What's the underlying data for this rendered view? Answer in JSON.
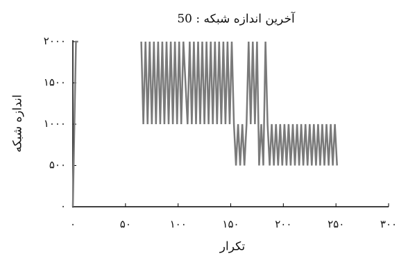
{
  "chart_data": {
    "type": "line",
    "title": "50 : آخرین اندازه شبکه",
    "x_label": "تکرار",
    "y_label": "اندازه شبکه",
    "xlim": [
      0,
      300
    ],
    "ylim": [
      0,
      2000
    ],
    "xticks": [
      {
        "value": 0,
        "label": "۰"
      },
      {
        "value": 50,
        "label": "۵۰"
      },
      {
        "value": 100,
        "label": "۱۰۰"
      },
      {
        "value": 150,
        "label": "۱۵۰"
      },
      {
        "value": 200,
        "label": "۲۰۰"
      },
      {
        "value": 250,
        "label": "۲۵۰"
      },
      {
        "value": 300,
        "label": "۳۰۰"
      }
    ],
    "yticks": [
      {
        "value": 0,
        "label": "۰"
      },
      {
        "value": 500,
        "label": "۵۰۰"
      },
      {
        "value": 1000,
        "label": "۱۰۰۰"
      },
      {
        "value": 1500,
        "label": "۱۵۰۰"
      },
      {
        "value": 2000,
        "label": "۲۰۰۰"
      }
    ],
    "series": [
      {
        "color": "#7a7a7a",
        "x": [
          0,
          3,
          5,
          6,
          65,
          67,
          69,
          71,
          73,
          75,
          77,
          79,
          81,
          83,
          85,
          87,
          89,
          91,
          93,
          95,
          97,
          99,
          101,
          103,
          105,
          109,
          111,
          113,
          115,
          117,
          119,
          121,
          123,
          125,
          127,
          129,
          131,
          133,
          135,
          137,
          139,
          141,
          143,
          145,
          147,
          149,
          151,
          153,
          155,
          157,
          159,
          161,
          163,
          165,
          167,
          169,
          171,
          173,
          175,
          177,
          179,
          181,
          183,
          185,
          187,
          189,
          191,
          193,
          195,
          197,
          199,
          201,
          203,
          205,
          207,
          209,
          211,
          213,
          215,
          217,
          219,
          221,
          223,
          225,
          227,
          229,
          231,
          233,
          235,
          237,
          239,
          241,
          243,
          245,
          247,
          249,
          251
        ],
        "values": [
          0,
          2000,
          2000,
          null,
          2000,
          1000,
          2000,
          1000,
          2000,
          1000,
          2000,
          1000,
          2000,
          1000,
          2000,
          1000,
          2000,
          1000,
          2000,
          1000,
          2000,
          1000,
          2000,
          1000,
          2000,
          1000,
          2000,
          1000,
          2000,
          1000,
          2000,
          1000,
          2000,
          1000,
          2000,
          1000,
          2000,
          1000,
          2000,
          1000,
          2000,
          1000,
          2000,
          1000,
          2000,
          1000,
          2000,
          1000,
          500,
          1000,
          500,
          1000,
          500,
          1000,
          2000,
          1000,
          2000,
          1000,
          2000,
          500,
          1000,
          500,
          2000,
          1000,
          500,
          1000,
          500,
          1000,
          500,
          1000,
          500,
          1000,
          500,
          1000,
          500,
          1000,
          500,
          1000,
          500,
          1000,
          500,
          1000,
          500,
          1000,
          500,
          1000,
          500,
          1000,
          500,
          1000,
          500,
          1000,
          500,
          1000,
          500,
          1000,
          500
        ]
      }
    ]
  }
}
